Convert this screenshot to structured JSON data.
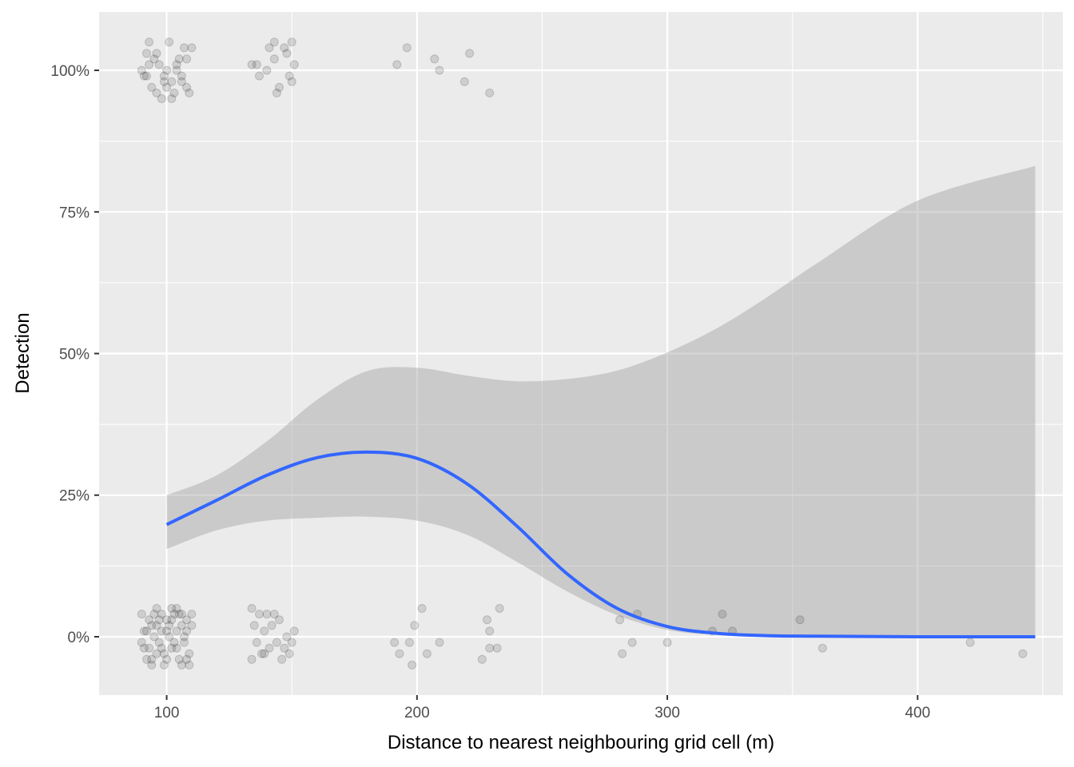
{
  "chart_data": {
    "type": "scatter",
    "title": "",
    "xlabel": "Distance to nearest neighbouring grid cell (m)",
    "ylabel": "Detection",
    "xlim": [
      73,
      458
    ],
    "ylim": [
      -0.103,
      1.103
    ],
    "x_ticks": [
      100,
      200,
      300,
      400
    ],
    "x_tick_labels": [
      "100",
      "200",
      "300",
      "400"
    ],
    "y_ticks": [
      0,
      0.25,
      0.5,
      0.75,
      1.0
    ],
    "y_tick_labels": [
      "0%",
      "25%",
      "50%",
      "75%",
      "100%"
    ],
    "grid": true,
    "legend": "none",
    "colors": {
      "panel_background": "#ebebeb",
      "grid": "#ffffff",
      "points": "#000000",
      "smooth_line": "#3366ff",
      "ribbon": "#999999"
    },
    "point_opacity": 0.12,
    "jitter": {
      "x": 10,
      "y": 0.05
    },
    "points": {
      "detected": [
        [
          91,
          0.99
        ],
        [
          92,
          1.03
        ],
        [
          93,
          1.05
        ],
        [
          95,
          1.02
        ],
        [
          94,
          0.97
        ],
        [
          96,
          0.96
        ],
        [
          97,
          1.01
        ],
        [
          98,
          0.95
        ],
        [
          99,
          0.99
        ],
        [
          100,
          1.0
        ],
        [
          101,
          1.05
        ],
        [
          102,
          0.98
        ],
        [
          103,
          0.96
        ],
        [
          104,
          1.0
        ],
        [
          105,
          1.02
        ],
        [
          106,
          0.99
        ],
        [
          107,
          1.04
        ],
        [
          108,
          0.97
        ],
        [
          109,
          0.96
        ],
        [
          110,
          1.04
        ],
        [
          90,
          1.0
        ],
        [
          93,
          1.01
        ],
        [
          96,
          1.03
        ],
        [
          99,
          0.98
        ],
        [
          102,
          0.95
        ],
        [
          104,
          1.01
        ],
        [
          106,
          0.98
        ],
        [
          108,
          1.02
        ],
        [
          92,
          0.99
        ],
        [
          100,
          0.97
        ],
        [
          134,
          1.01
        ],
        [
          136,
          1.01
        ],
        [
          137,
          0.99
        ],
        [
          140,
          1.0
        ],
        [
          141,
          1.04
        ],
        [
          143,
          1.05
        ],
        [
          143,
          1.02
        ],
        [
          145,
          0.97
        ],
        [
          147,
          1.04
        ],
        [
          148,
          1.03
        ],
        [
          150,
          1.05
        ],
        [
          150,
          0.98
        ],
        [
          151,
          1.01
        ],
        [
          144,
          0.96
        ],
        [
          149,
          0.99
        ],
        [
          192,
          1.01
        ],
        [
          196,
          1.04
        ],
        [
          207,
          1.02
        ],
        [
          209,
          1.0
        ],
        [
          219,
          0.98
        ],
        [
          221,
          1.03
        ],
        [
          229,
          0.96
        ]
      ],
      "not_detected": [
        [
          90,
          0.04
        ],
        [
          91,
          -0.02
        ],
        [
          92,
          0.01
        ],
        [
          93,
          0.03
        ],
        [
          94,
          -0.04
        ],
        [
          95,
          0.0
        ],
        [
          96,
          0.02
        ],
        [
          97,
          -0.01
        ],
        [
          98,
          0.04
        ],
        [
          99,
          -0.03
        ],
        [
          100,
          0.03
        ],
        [
          101,
          0.0
        ],
        [
          102,
          -0.02
        ],
        [
          103,
          0.04
        ],
        [
          104,
          0.01
        ],
        [
          105,
          -0.04
        ],
        [
          106,
          0.02
        ],
        [
          107,
          -0.01
        ],
        [
          108,
          0.03
        ],
        [
          109,
          -0.03
        ],
        [
          110,
          0.04
        ],
        [
          91,
          0.01
        ],
        [
          93,
          -0.02
        ],
        [
          95,
          0.04
        ],
        [
          97,
          0.03
        ],
        [
          99,
          -0.05
        ],
        [
          101,
          0.02
        ],
        [
          103,
          -0.01
        ],
        [
          105,
          0.04
        ],
        [
          107,
          0.0
        ],
        [
          109,
          -0.05
        ],
        [
          92,
          -0.04
        ],
        [
          94,
          0.02
        ],
        [
          96,
          -0.03
        ],
        [
          98,
          0.01
        ],
        [
          100,
          -0.04
        ],
        [
          102,
          0.03
        ],
        [
          104,
          -0.02
        ],
        [
          106,
          0.04
        ],
        [
          108,
          -0.04
        ],
        [
          90,
          -0.01
        ],
        [
          110,
          0.02
        ],
        [
          96,
          0.05
        ],
        [
          104,
          0.05
        ],
        [
          100,
          0.01
        ],
        [
          94,
          -0.05
        ],
        [
          106,
          -0.05
        ],
        [
          98,
          -0.02
        ],
        [
          102,
          0.05
        ],
        [
          108,
          0.01
        ],
        [
          134,
          0.05
        ],
        [
          135,
          0.02
        ],
        [
          136,
          -0.01
        ],
        [
          137,
          0.04
        ],
        [
          138,
          -0.03
        ],
        [
          139,
          0.01
        ],
        [
          140,
          0.04
        ],
        [
          141,
          -0.02
        ],
        [
          142,
          0.02
        ],
        [
          143,
          0.04
        ],
        [
          144,
          -0.01
        ],
        [
          145,
          0.03
        ],
        [
          146,
          -0.04
        ],
        [
          147,
          -0.02
        ],
        [
          148,
          0.0
        ],
        [
          149,
          -0.03
        ],
        [
          150,
          -0.01
        ],
        [
          151,
          0.01
        ],
        [
          134,
          -0.04
        ],
        [
          139,
          -0.03
        ],
        [
          191,
          -0.01
        ],
        [
          193,
          -0.03
        ],
        [
          197,
          -0.01
        ],
        [
          198,
          -0.05
        ],
        [
          199,
          0.02
        ],
        [
          202,
          0.05
        ],
        [
          204,
          -0.03
        ],
        [
          209,
          -0.01
        ],
        [
          226,
          -0.04
        ],
        [
          228,
          0.03
        ],
        [
          229,
          0.01
        ],
        [
          229,
          -0.02
        ],
        [
          232,
          -0.02
        ],
        [
          233,
          0.05
        ],
        [
          281,
          0.03
        ],
        [
          282,
          -0.03
        ],
        [
          286,
          -0.01
        ],
        [
          288,
          0.04
        ],
        [
          300,
          -0.01
        ],
        [
          318,
          0.01
        ],
        [
          322,
          0.04
        ],
        [
          326,
          0.01
        ],
        [
          353,
          0.03
        ],
        [
          362,
          -0.02
        ],
        [
          421,
          -0.01
        ],
        [
          442,
          -0.03
        ]
      ]
    },
    "smooth_fit": {
      "x": [
        100,
        120,
        140,
        160,
        180,
        200,
        220,
        240,
        260,
        280,
        300,
        320,
        340,
        360,
        400,
        447
      ],
      "y": [
        0.198,
        0.241,
        0.285,
        0.316,
        0.326,
        0.315,
        0.27,
        0.195,
        0.111,
        0.05,
        0.018,
        0.006,
        0.002,
        0.001,
        0.0,
        0.0
      ],
      "lower": [
        0.155,
        0.188,
        0.205,
        0.21,
        0.212,
        0.205,
        0.18,
        0.132,
        0.08,
        0.038,
        0.012,
        0.003,
        0.0,
        0.0,
        0.0,
        0.0
      ],
      "upper": [
        0.25,
        0.285,
        0.345,
        0.418,
        0.469,
        0.475,
        0.461,
        0.451,
        0.455,
        0.47,
        0.502,
        0.545,
        0.6,
        0.66,
        0.77,
        0.831
      ]
    }
  }
}
